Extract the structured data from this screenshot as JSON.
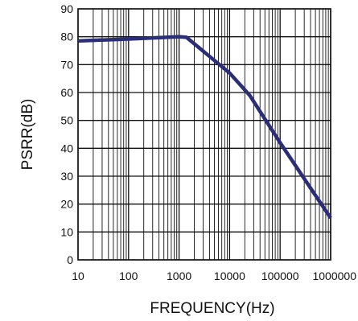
{
  "chart_data": {
    "type": "line",
    "title": "",
    "xlabel": "FREQUENCY(Hz)",
    "ylabel": "PSRR(dB)",
    "x_scale": "log",
    "xlim": [
      10,
      1000000
    ],
    "ylim": [
      0,
      90
    ],
    "x_ticks": [
      "10",
      "100",
      "1000",
      "10000",
      "100000",
      "1000000"
    ],
    "y_ticks": [
      "0",
      "10",
      "20",
      "30",
      "40",
      "50",
      "60",
      "70",
      "80",
      "90"
    ],
    "grid": true,
    "line_color": "#2a2e78",
    "series": [
      {
        "x": [
          10,
          100,
          1000,
          1400,
          10000,
          25000,
          100000,
          1000000
        ],
        "y": [
          78.5,
          79.2,
          80.0,
          79.8,
          67.0,
          59.0,
          42.0,
          15.0
        ]
      }
    ]
  }
}
